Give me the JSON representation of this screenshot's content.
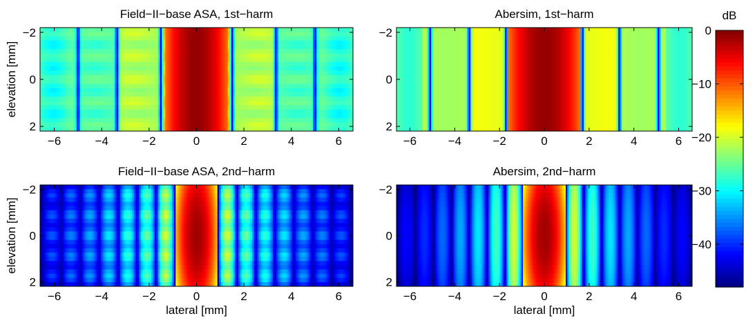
{
  "figure": {
    "colorbar": {
      "label": "dB",
      "ticks": [
        0,
        -10,
        -20,
        -30,
        -40
      ],
      "range": [
        -48,
        0
      ],
      "colormap": "jet"
    }
  },
  "chart_data": [
    {
      "type": "heatmap",
      "title": "Field−II−base ASA, 1st−harm",
      "xlabel": "",
      "ylabel": "elevation [mm]",
      "xlim": [
        -6.6,
        6.6
      ],
      "ylim": [
        -2.2,
        2.2
      ],
      "xticks": [
        -6,
        -4,
        -2,
        0,
        2,
        4,
        6
      ],
      "yticks": [
        -2,
        0,
        2
      ],
      "xtick_labels": [
        "−6",
        "−4",
        "−2",
        "0",
        "2",
        "4",
        "6"
      ],
      "ytick_labels": [
        "−2",
        "0",
        "2"
      ],
      "color_unit": "dB",
      "mainlobe_halfwidth_mm": 1.35,
      "null_positions_mm": [
        1.5,
        3.35,
        5.0
      ],
      "sidelobe_peaks_db": [
        -13,
        -22,
        -26
      ],
      "floor_db": -27,
      "null_db": -42,
      "elevation_ripple": true
    },
    {
      "type": "heatmap",
      "title": "Abersim, 1st−harm",
      "xlabel": "",
      "ylabel": "",
      "xlim": [
        -6.6,
        6.6
      ],
      "ylim": [
        -2.2,
        2.2
      ],
      "xticks": [
        -6,
        -4,
        -2,
        0,
        2,
        4,
        6
      ],
      "yticks": [
        -2,
        0,
        2
      ],
      "xtick_labels": [
        "−6",
        "−4",
        "−2",
        "0",
        "2",
        "4",
        "6"
      ],
      "ytick_labels": [
        "−2",
        "0",
        "2"
      ],
      "color_unit": "dB",
      "mainlobe_halfwidth_mm": 1.65,
      "null_positions_mm": [
        1.7,
        3.35,
        5.1
      ],
      "sidelobe_peaks_db": [
        -13,
        -19,
        -22
      ],
      "floor_db": -26,
      "null_db": -42,
      "elevation_ripple": false
    },
    {
      "type": "heatmap",
      "title": "Field−II−base ASA, 2nd−harm",
      "xlabel": "lateral [mm]",
      "ylabel": "elevation [mm]",
      "xlim": [
        -6.6,
        6.6
      ],
      "ylim": [
        -2.2,
        2.2
      ],
      "xticks": [
        -6,
        -4,
        -2,
        0,
        2,
        4,
        6
      ],
      "yticks": [
        -2,
        0,
        2
      ],
      "xtick_labels": [
        "−6",
        "−4",
        "−2",
        "0",
        "2",
        "4",
        "6"
      ],
      "ytick_labels": [
        "−2",
        "0",
        "2"
      ],
      "color_unit": "dB",
      "mainlobe_halfwidth_mm": 0.9,
      "lobe_period_mm": 0.8,
      "sidelobe_peaks_db": [
        -22,
        -27,
        -30,
        -33,
        -36,
        -38,
        -40
      ],
      "floor_db": -44,
      "null_db": -46,
      "elevation_ripple": true
    },
    {
      "type": "heatmap",
      "title": "Abersim, 2nd−harm",
      "xlabel": "lateral [mm]",
      "ylabel": "",
      "xlim": [
        -6.6,
        6.6
      ],
      "ylim": [
        -2.2,
        2.2
      ],
      "xticks": [
        -6,
        -4,
        -2,
        0,
        2,
        4,
        6
      ],
      "yticks": [
        -2,
        0,
        2
      ],
      "xtick_labels": [
        "−6",
        "−4",
        "−2",
        "0",
        "2",
        "4",
        "6"
      ],
      "ytick_labels": [
        "−2",
        "0",
        "2"
      ],
      "color_unit": "dB",
      "mainlobe_halfwidth_mm": 0.95,
      "lobe_period_mm": 0.8,
      "sidelobe_peaks_db": [
        -20,
        -27,
        -31,
        -34,
        -37,
        -40,
        -42
      ],
      "floor_db": -46,
      "null_db": -47,
      "elevation_ripple": false
    }
  ]
}
